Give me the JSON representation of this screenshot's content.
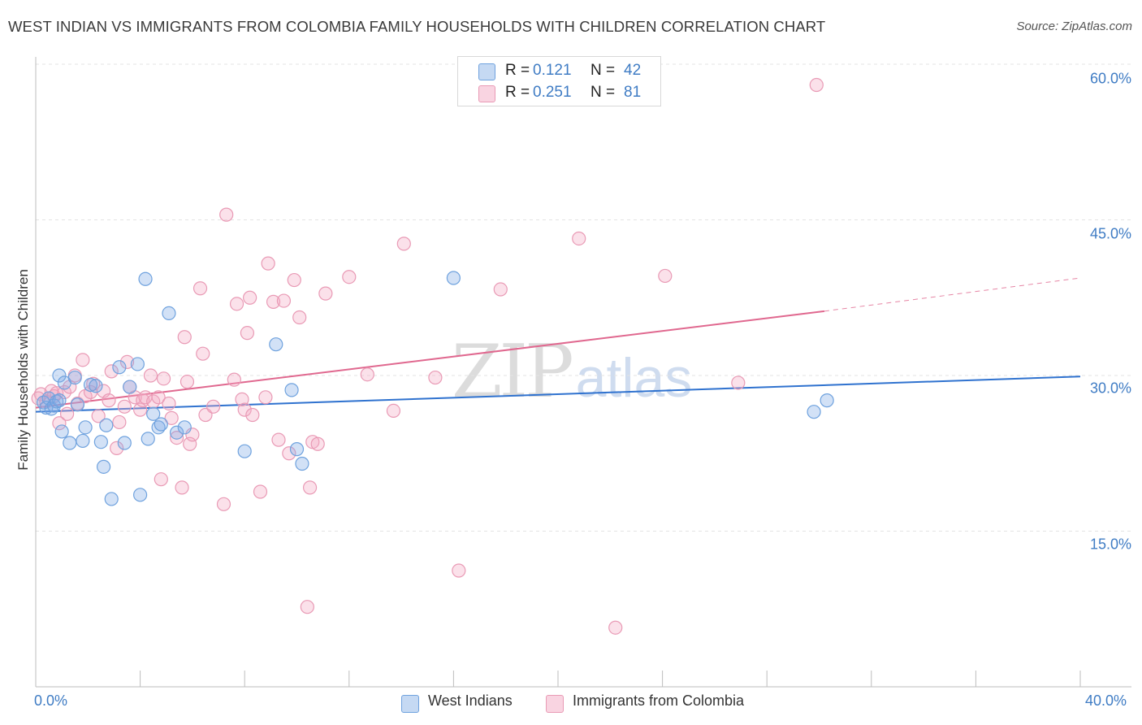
{
  "title": "WEST INDIAN VS IMMIGRANTS FROM COLOMBIA FAMILY HOUSEHOLDS WITH CHILDREN CORRELATION CHART",
  "source": "Source: ZipAtlas.com",
  "watermark": {
    "zip": "ZIP",
    "atlas": "atlas"
  },
  "legend": {
    "west": {
      "r_label": "R =",
      "r_value": "0.121",
      "n_label": "N =",
      "n_value": "42"
    },
    "colombia": {
      "r_label": "R =",
      "r_value": "0.251",
      "n_label": "N =",
      "n_value": "81"
    }
  },
  "colors": {
    "blue": "#6fa2de",
    "blue_fill": "rgba(126,170,228,0.35)",
    "blue_line": "#2f72cf",
    "pink": "#e99ab5",
    "pink_fill": "rgba(244,170,196,0.35)",
    "pink_line": "#e0688f"
  },
  "chart_data": {
    "type": "scatter",
    "title": "WEST INDIAN VS IMMIGRANTS FROM COLOMBIA FAMILY HOUSEHOLDS WITH CHILDREN CORRELATION CHART",
    "xlabel": "",
    "ylabel": "Family Households with Children",
    "xlim": [
      0,
      40
    ],
    "ylim": [
      0,
      62.5
    ],
    "x_tick_labels": {
      "min": "0.0%",
      "max": "40.0%"
    },
    "y_ticks": [
      {
        "value": 15,
        "label": "15.0%"
      },
      {
        "value": 30,
        "label": "30.0%"
      },
      {
        "value": 45,
        "label": "45.0%"
      },
      {
        "value": 60,
        "label": "60.0%"
      }
    ],
    "x_ticks": [
      0,
      4,
      8,
      12,
      16,
      20,
      24,
      28,
      32,
      36,
      40
    ],
    "series": [
      {
        "name": "West Indians",
        "r": 0.121,
        "n": 42,
        "trend": {
          "x0": 0,
          "y0": 26.5,
          "x1": 40,
          "y1": 29.9
        },
        "points": [
          [
            0.3,
            27.4
          ],
          [
            0.4,
            26.9
          ],
          [
            0.5,
            27.8
          ],
          [
            0.6,
            26.8
          ],
          [
            0.7,
            27.1
          ],
          [
            0.8,
            27.5
          ],
          [
            0.9,
            27.6
          ],
          [
            0.9,
            30.0
          ],
          [
            1.0,
            24.6
          ],
          [
            1.1,
            29.3
          ],
          [
            1.3,
            23.5
          ],
          [
            1.5,
            29.8
          ],
          [
            1.6,
            27.2
          ],
          [
            1.8,
            23.7
          ],
          [
            1.9,
            25.0
          ],
          [
            2.1,
            29.1
          ],
          [
            2.3,
            29.0
          ],
          [
            2.5,
            23.6
          ],
          [
            2.6,
            21.2
          ],
          [
            2.7,
            25.2
          ],
          [
            2.9,
            18.1
          ],
          [
            3.2,
            30.8
          ],
          [
            3.4,
            23.5
          ],
          [
            3.6,
            28.9
          ],
          [
            3.9,
            31.1
          ],
          [
            4.0,
            18.5
          ],
          [
            4.2,
            39.3
          ],
          [
            4.3,
            23.9
          ],
          [
            4.5,
            26.3
          ],
          [
            4.7,
            25.0
          ],
          [
            4.8,
            25.3
          ],
          [
            5.1,
            36.0
          ],
          [
            5.4,
            24.5
          ],
          [
            5.7,
            25.0
          ],
          [
            8.0,
            22.7
          ],
          [
            9.2,
            33.0
          ],
          [
            9.8,
            28.6
          ],
          [
            10.0,
            22.9
          ],
          [
            10.2,
            21.5
          ],
          [
            16.0,
            39.4
          ],
          [
            29.8,
            26.5
          ],
          [
            30.3,
            27.6
          ]
        ]
      },
      {
        "name": "Immigrants from Colombia",
        "r": 0.251,
        "n": 81,
        "trend": {
          "x0": 0,
          "y0": 26.9,
          "x1": 30.2,
          "y1": 36.2,
          "dash_x1": 40,
          "dash_y1": 39.4
        },
        "points": [
          [
            0.2,
            28.2
          ],
          [
            0.4,
            27.5
          ],
          [
            0.6,
            28.5
          ],
          [
            0.7,
            28.0
          ],
          [
            0.8,
            28.3
          ],
          [
            0.9,
            25.4
          ],
          [
            1.1,
            28.4
          ],
          [
            1.2,
            26.3
          ],
          [
            1.3,
            28.9
          ],
          [
            1.5,
            30.0
          ],
          [
            1.6,
            27.3
          ],
          [
            1.8,
            31.5
          ],
          [
            1.9,
            28.0
          ],
          [
            2.1,
            28.4
          ],
          [
            2.2,
            29.2
          ],
          [
            2.4,
            26.1
          ],
          [
            2.6,
            28.5
          ],
          [
            2.8,
            27.6
          ],
          [
            2.9,
            30.4
          ],
          [
            3.1,
            23.0
          ],
          [
            3.2,
            25.5
          ],
          [
            3.4,
            27.0
          ],
          [
            3.5,
            31.3
          ],
          [
            3.6,
            28.9
          ],
          [
            3.8,
            27.9
          ],
          [
            4.0,
            26.7
          ],
          [
            4.1,
            27.6
          ],
          [
            4.2,
            27.9
          ],
          [
            4.4,
            30.0
          ],
          [
            4.5,
            27.5
          ],
          [
            4.7,
            27.9
          ],
          [
            4.8,
            20.0
          ],
          [
            4.9,
            29.7
          ],
          [
            5.1,
            27.3
          ],
          [
            5.2,
            25.9
          ],
          [
            5.4,
            24.0
          ],
          [
            5.6,
            19.2
          ],
          [
            5.7,
            33.7
          ],
          [
            5.8,
            29.4
          ],
          [
            5.9,
            23.4
          ],
          [
            6.0,
            24.3
          ],
          [
            6.3,
            38.4
          ],
          [
            6.4,
            32.1
          ],
          [
            6.5,
            26.2
          ],
          [
            6.8,
            27.0
          ],
          [
            7.2,
            17.6
          ],
          [
            7.3,
            45.5
          ],
          [
            7.6,
            29.6
          ],
          [
            7.7,
            36.9
          ],
          [
            7.9,
            27.7
          ],
          [
            8.0,
            26.7
          ],
          [
            8.1,
            34.1
          ],
          [
            8.2,
            37.5
          ],
          [
            8.3,
            26.2
          ],
          [
            8.6,
            18.8
          ],
          [
            8.8,
            27.9
          ],
          [
            8.9,
            40.8
          ],
          [
            9.1,
            37.1
          ],
          [
            9.3,
            23.8
          ],
          [
            9.5,
            37.2
          ],
          [
            9.7,
            22.5
          ],
          [
            9.9,
            39.2
          ],
          [
            10.1,
            35.6
          ],
          [
            10.4,
            7.7
          ],
          [
            10.5,
            19.2
          ],
          [
            10.6,
            23.6
          ],
          [
            10.8,
            23.4
          ],
          [
            11.1,
            37.9
          ],
          [
            12.0,
            39.5
          ],
          [
            12.7,
            30.1
          ],
          [
            13.7,
            26.6
          ],
          [
            14.1,
            42.7
          ],
          [
            15.3,
            29.8
          ],
          [
            16.2,
            11.2
          ],
          [
            17.8,
            38.3
          ],
          [
            20.8,
            43.2
          ],
          [
            22.2,
            5.7
          ],
          [
            24.1,
            39.6
          ],
          [
            26.9,
            29.3
          ],
          [
            29.9,
            58.0
          ],
          [
            0.1,
            27.8
          ]
        ]
      }
    ]
  },
  "legend_bottom": {
    "west": "West Indians",
    "colombia": "Immigrants from Colombia"
  }
}
